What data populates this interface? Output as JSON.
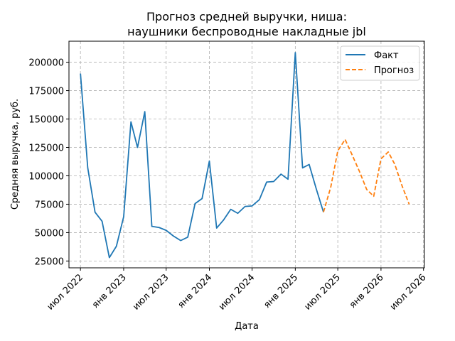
{
  "chart_data": {
    "type": "line",
    "title_lines": [
      "Прогноз средней выручки, ниша:",
      "наушники беспроводные накладные jbl"
    ],
    "xlabel": "Дата",
    "ylabel": "Средняя выручка, руб.",
    "x_ticks": [
      {
        "date": "2022-07-01",
        "label": "июл 2022"
      },
      {
        "date": "2023-01-01",
        "label": "янв 2023"
      },
      {
        "date": "2023-07-01",
        "label": "июл 2023"
      },
      {
        "date": "2024-01-01",
        "label": "янв 2024"
      },
      {
        "date": "2024-07-01",
        "label": "июл 2024"
      },
      {
        "date": "2025-01-01",
        "label": "янв 2025"
      },
      {
        "date": "2025-07-01",
        "label": "июл 2025"
      },
      {
        "date": "2026-01-01",
        "label": "янв 2026"
      },
      {
        "date": "2026-07-01",
        "label": "июл 2026"
      }
    ],
    "y_ticks": [
      25000,
      50000,
      75000,
      100000,
      125000,
      150000,
      175000,
      200000
    ],
    "xlim": [
      "2022-05-13",
      "2026-07-05"
    ],
    "ylim": [
      19000,
      218500
    ],
    "grid": true,
    "legend_position": "top-right",
    "series": [
      {
        "name": "Факт",
        "color": "#1f77b4",
        "style": "solid",
        "points": [
          [
            "2022-07-01",
            190000
          ],
          [
            "2022-08-01",
            107000
          ],
          [
            "2022-09-01",
            68000
          ],
          [
            "2022-10-01",
            60000
          ],
          [
            "2022-11-01",
            28000
          ],
          [
            "2022-12-01",
            38000
          ],
          [
            "2023-01-01",
            64000
          ],
          [
            "2023-02-01",
            147500
          ],
          [
            "2023-03-01",
            125000
          ],
          [
            "2023-04-01",
            156500
          ],
          [
            "2023-05-01",
            55500
          ],
          [
            "2023-06-01",
            54500
          ],
          [
            "2023-07-01",
            52000
          ],
          [
            "2023-08-01",
            47000
          ],
          [
            "2023-09-01",
            43000
          ],
          [
            "2023-10-01",
            46000
          ],
          [
            "2023-11-01",
            75500
          ],
          [
            "2023-12-01",
            80000
          ],
          [
            "2024-01-01",
            113000
          ],
          [
            "2024-02-01",
            54000
          ],
          [
            "2024-03-01",
            61000
          ],
          [
            "2024-04-01",
            70500
          ],
          [
            "2024-05-01",
            67000
          ],
          [
            "2024-06-01",
            73000
          ],
          [
            "2024-07-01",
            73500
          ],
          [
            "2024-08-01",
            79000
          ],
          [
            "2024-09-01",
            94500
          ],
          [
            "2024-10-01",
            95000
          ],
          [
            "2024-11-01",
            101500
          ],
          [
            "2024-12-01",
            97000
          ],
          [
            "2025-01-01",
            208500
          ],
          [
            "2025-02-01",
            107000
          ],
          [
            "2025-03-01",
            110000
          ],
          [
            "2025-04-01",
            88000
          ],
          [
            "2025-05-01",
            68000
          ]
        ]
      },
      {
        "name": "Прогноз",
        "color": "#ff7f0e",
        "style": "dashed",
        "points": [
          [
            "2025-05-01",
            68000
          ],
          [
            "2025-06-01",
            90000
          ],
          [
            "2025-07-01",
            122000
          ],
          [
            "2025-08-01",
            132000
          ],
          [
            "2025-09-01",
            118000
          ],
          [
            "2025-10-01",
            104000
          ],
          [
            "2025-11-01",
            88000
          ],
          [
            "2025-12-01",
            82000
          ],
          [
            "2026-01-01",
            115000
          ],
          [
            "2026-02-01",
            121000
          ],
          [
            "2026-03-01",
            110000
          ],
          [
            "2026-04-01",
            91000
          ],
          [
            "2026-05-01",
            75000
          ]
        ]
      }
    ]
  }
}
